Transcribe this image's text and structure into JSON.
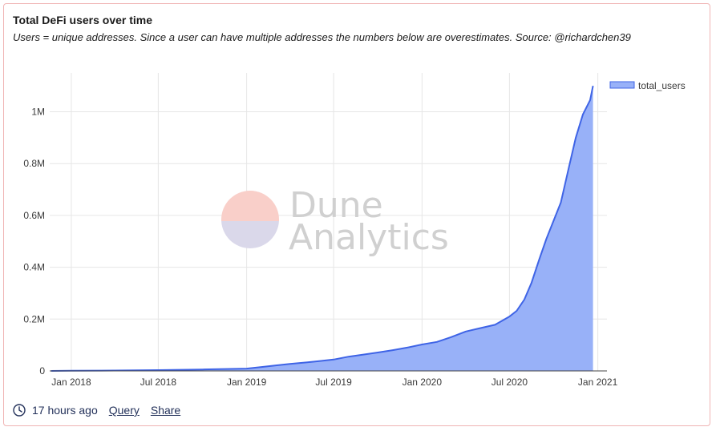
{
  "card": {
    "title": "Total DeFi users over time",
    "subtitle": "Users = unique addresses. Since a user can have multiple addresses the numbers below are overestimates. Source: @richardchen39"
  },
  "watermark": {
    "line1": "Dune",
    "line2": "Analytics"
  },
  "footer": {
    "time": "17 hours ago",
    "query_label": "Query",
    "share_label": "Share",
    "clock_icon": "clock-icon"
  },
  "colors": {
    "line": "#3f64e6",
    "fill": "#98b1f8",
    "grid": "#e6e6e6",
    "watermark_circle_top": "#f9cfc9",
    "watermark_circle_bottom": "#dad8ea"
  },
  "chart_data": {
    "type": "area",
    "x_type": "date",
    "xlim": [
      "2017-11-17",
      "2021-01-20"
    ],
    "ylim": [
      0,
      1150000
    ],
    "y_ticks": [
      0,
      200000,
      400000,
      600000,
      800000,
      1000000
    ],
    "y_tick_labels": [
      "0",
      "0.2M",
      "0.4M",
      "0.6M",
      "0.8M",
      "1M"
    ],
    "x_ticks": [
      "2018-01-01",
      "2018-07-01",
      "2019-01-01",
      "2019-07-01",
      "2020-01-01",
      "2020-07-01",
      "2021-01-01"
    ],
    "x_tick_labels": [
      "Jan 2018",
      "Jul 2018",
      "Jan 2019",
      "Jul 2019",
      "Jan 2020",
      "Jul 2020",
      "Jan 2021"
    ],
    "grid": true,
    "legend_position": "top-right",
    "series": [
      {
        "name": "total_users",
        "points": [
          [
            "2017-11-20",
            0
          ],
          [
            "2018-01-01",
            500
          ],
          [
            "2018-04-01",
            1500
          ],
          [
            "2018-07-01",
            3000
          ],
          [
            "2018-10-01",
            5500
          ],
          [
            "2019-01-01",
            9000
          ],
          [
            "2019-02-01",
            15000
          ],
          [
            "2019-03-01",
            21000
          ],
          [
            "2019-04-01",
            27000
          ],
          [
            "2019-05-01",
            32000
          ],
          [
            "2019-06-01",
            38000
          ],
          [
            "2019-07-01",
            44000
          ],
          [
            "2019-08-01",
            55000
          ],
          [
            "2019-09-01",
            63000
          ],
          [
            "2019-10-01",
            71000
          ],
          [
            "2019-11-01",
            80000
          ],
          [
            "2019-12-01",
            90000
          ],
          [
            "2020-01-01",
            102000
          ],
          [
            "2020-02-01",
            112000
          ],
          [
            "2020-03-01",
            130000
          ],
          [
            "2020-04-01",
            152000
          ],
          [
            "2020-05-01",
            165000
          ],
          [
            "2020-06-01",
            178000
          ],
          [
            "2020-07-01",
            210000
          ],
          [
            "2020-07-16",
            232000
          ],
          [
            "2020-08-01",
            275000
          ],
          [
            "2020-08-16",
            340000
          ],
          [
            "2020-09-01",
            430000
          ],
          [
            "2020-09-16",
            510000
          ],
          [
            "2020-10-01",
            580000
          ],
          [
            "2020-10-16",
            650000
          ],
          [
            "2020-11-01",
            780000
          ],
          [
            "2020-11-16",
            900000
          ],
          [
            "2020-12-01",
            990000
          ],
          [
            "2020-12-16",
            1045000
          ],
          [
            "2020-12-22",
            1100000
          ]
        ]
      }
    ]
  }
}
